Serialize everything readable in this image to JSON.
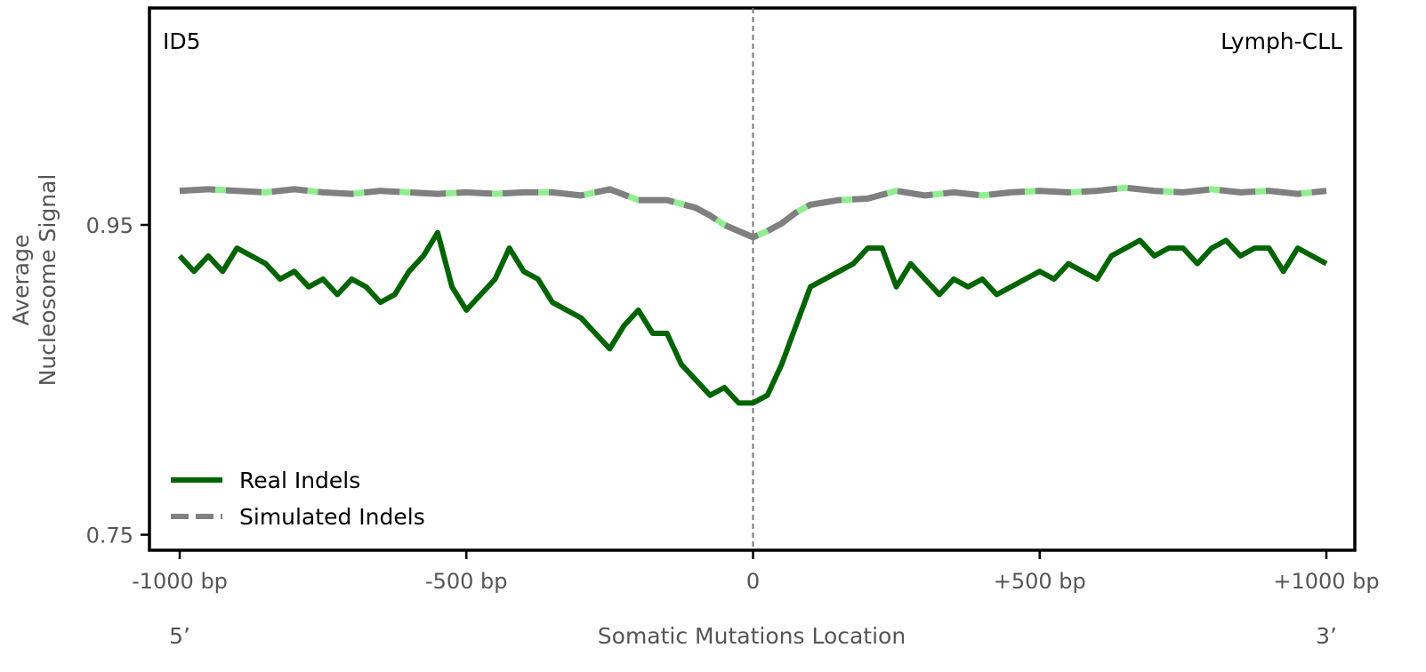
{
  "chart_data": {
    "type": "line",
    "title_left": "ID5",
    "title_right": "Lymph-CLL",
    "xlabel": "Somatic Mutations Location",
    "ylabel_line1": "Average",
    "ylabel_line2": "Nucleosome Signal",
    "xlim": [
      -1000,
      1000
    ],
    "ylim": [
      0.74,
      1.09
    ],
    "x_ticks": [
      {
        "value": -1000,
        "label": "-1000 bp"
      },
      {
        "value": -500,
        "label": "-500 bp"
      },
      {
        "value": 0,
        "label": "0"
      },
      {
        "value": 500,
        "label": "+500 bp"
      },
      {
        "value": 1000,
        "label": "+1000 bp"
      }
    ],
    "y_ticks": [
      {
        "value": 0.95,
        "label": "0.95"
      },
      {
        "value": 0.75,
        "label": "0.75"
      }
    ],
    "end_labels": {
      "left": "5’",
      "right": "3’"
    },
    "legend_position": "lower-left",
    "grid": false,
    "reference_line_x": 0,
    "series": [
      {
        "name": "Real Indels",
        "color": "#006400",
        "style": "solid",
        "x": [
          -1000,
          -975,
          -950,
          -925,
          -900,
          -875,
          -850,
          -825,
          -800,
          -775,
          -750,
          -725,
          -700,
          -675,
          -650,
          -625,
          -600,
          -575,
          -550,
          -525,
          -500,
          -475,
          -450,
          -425,
          -400,
          -375,
          -350,
          -325,
          -300,
          -275,
          -250,
          -225,
          -200,
          -175,
          -150,
          -125,
          -100,
          -75,
          -50,
          -25,
          0,
          25,
          50,
          75,
          100,
          125,
          150,
          175,
          200,
          225,
          250,
          275,
          300,
          325,
          350,
          375,
          400,
          425,
          450,
          475,
          500,
          525,
          550,
          575,
          600,
          625,
          650,
          675,
          700,
          725,
          750,
          775,
          800,
          825,
          850,
          875,
          900,
          925,
          950,
          975,
          1000
        ],
        "values": [
          0.93,
          0.92,
          0.93,
          0.92,
          0.935,
          0.93,
          0.925,
          0.915,
          0.92,
          0.91,
          0.915,
          0.905,
          0.915,
          0.91,
          0.9,
          0.905,
          0.92,
          0.93,
          0.945,
          0.91,
          0.895,
          0.905,
          0.915,
          0.935,
          0.92,
          0.915,
          0.9,
          0.895,
          0.89,
          0.88,
          0.87,
          0.885,
          0.895,
          0.88,
          0.88,
          0.86,
          0.85,
          0.84,
          0.845,
          0.835,
          0.835,
          0.84,
          0.86,
          0.885,
          0.91,
          0.915,
          0.92,
          0.925,
          0.935,
          0.935,
          0.91,
          0.925,
          0.915,
          0.905,
          0.915,
          0.91,
          0.915,
          0.905,
          0.91,
          0.915,
          0.92,
          0.915,
          0.925,
          0.92,
          0.915,
          0.93,
          0.935,
          0.94,
          0.93,
          0.935,
          0.935,
          0.925,
          0.935,
          0.94,
          0.93,
          0.935,
          0.935,
          0.92,
          0.935,
          0.93,
          0.925
        ]
      },
      {
        "name": "Simulated Indels",
        "color": "#808080",
        "highlight_color": "#90ee90",
        "style": "dashed",
        "x": [
          -1000,
          -950,
          -900,
          -850,
          -800,
          -750,
          -700,
          -650,
          -600,
          -550,
          -500,
          -450,
          -400,
          -350,
          -300,
          -250,
          -200,
          -150,
          -100,
          -75,
          -50,
          -25,
          0,
          25,
          50,
          75,
          100,
          150,
          200,
          250,
          300,
          350,
          400,
          450,
          500,
          550,
          600,
          650,
          700,
          750,
          800,
          850,
          900,
          950,
          1000
        ],
        "values": [
          0.972,
          0.973,
          0.972,
          0.971,
          0.973,
          0.971,
          0.97,
          0.972,
          0.971,
          0.97,
          0.971,
          0.97,
          0.971,
          0.971,
          0.969,
          0.973,
          0.966,
          0.966,
          0.961,
          0.956,
          0.95,
          0.946,
          0.942,
          0.946,
          0.951,
          0.958,
          0.963,
          0.966,
          0.967,
          0.972,
          0.969,
          0.971,
          0.969,
          0.971,
          0.972,
          0.971,
          0.972,
          0.974,
          0.972,
          0.971,
          0.973,
          0.971,
          0.972,
          0.97,
          0.972
        ]
      }
    ]
  }
}
